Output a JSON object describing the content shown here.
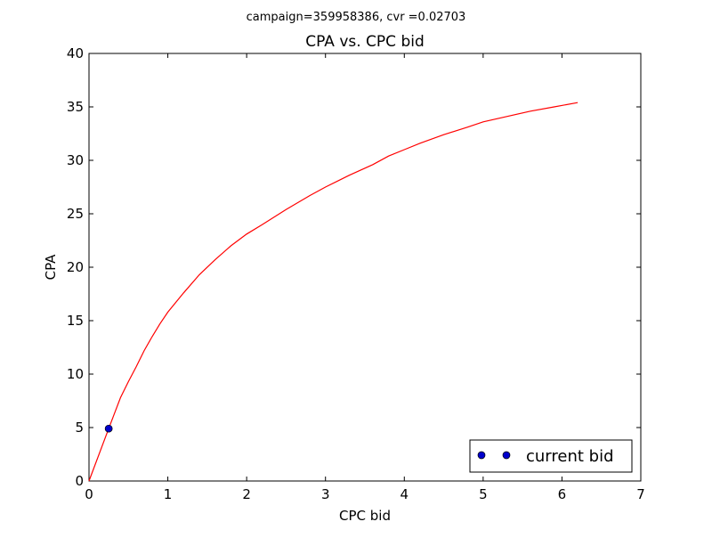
{
  "figure": {
    "suptitle": "campaign=359958386, cvr =0.02703"
  },
  "colors": {
    "line": "#ff0000",
    "marker": "#0000cc",
    "axes": "#000000",
    "background": "#ffffff"
  },
  "chart_data": {
    "type": "line",
    "title": "CPA vs. CPC bid",
    "xlabel": "CPC bid",
    "ylabel": "CPA",
    "xlim": [
      0,
      7
    ],
    "ylim": [
      0,
      40
    ],
    "xticks": [
      0,
      1,
      2,
      3,
      4,
      5,
      6,
      7
    ],
    "yticks": [
      0,
      5,
      10,
      15,
      20,
      25,
      30,
      35,
      40
    ],
    "grid": false,
    "legend_position": "lower-right",
    "series": [
      {
        "kind": "line",
        "color": "#ff0000",
        "x": [
          0,
          0.25,
          0.4,
          0.5,
          0.6,
          0.7,
          0.8,
          0.9,
          1.0,
          1.2,
          1.4,
          1.6,
          1.8,
          2.0,
          2.2,
          2.5,
          2.8,
          3.0,
          3.3,
          3.6,
          3.8,
          4.0,
          4.2,
          4.5,
          4.8,
          5.0,
          5.3,
          5.6,
          5.9,
          6.2
        ],
        "y": [
          0,
          4.9,
          7.8,
          9.3,
          10.7,
          12.2,
          13.5,
          14.7,
          15.8,
          17.6,
          19.3,
          20.7,
          22.0,
          23.1,
          24.0,
          25.4,
          26.7,
          27.5,
          28.6,
          29.6,
          30.4,
          31.0,
          31.6,
          32.4,
          33.1,
          33.6,
          34.1,
          34.6,
          35.0,
          35.4
        ]
      },
      {
        "name": "current bid",
        "kind": "scatter",
        "color": "#0000cc",
        "x": [
          0.25
        ],
        "y": [
          4.9
        ]
      }
    ]
  }
}
